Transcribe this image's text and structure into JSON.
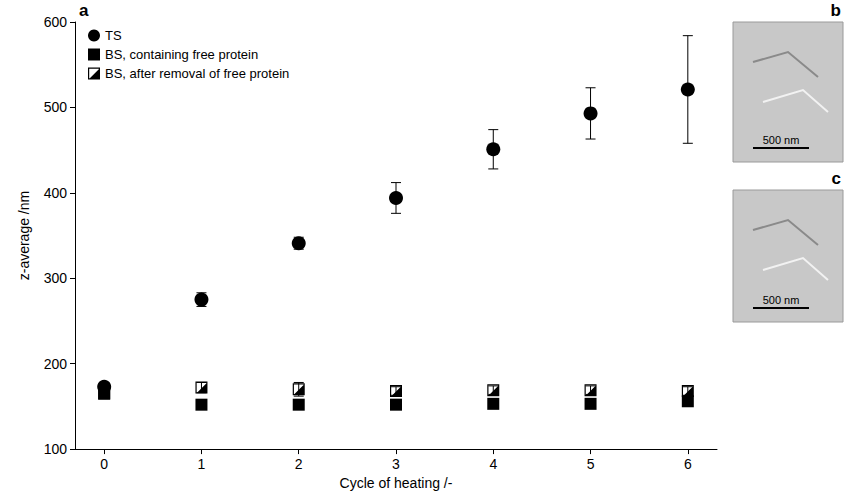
{
  "chart_data": {
    "type": "scatter",
    "panel_label": "a",
    "x_label": "Cycle of heating /-",
    "y_label": "z-average /nm",
    "xlim": [
      -0.3,
      6.3
    ],
    "xticks": [
      0,
      1,
      2,
      3,
      4,
      5,
      6
    ],
    "ylim": [
      100,
      600
    ],
    "yticks": [
      100,
      200,
      300,
      400,
      500,
      600
    ],
    "grid": false,
    "legend": "upper left",
    "series": [
      {
        "name": "TS",
        "color": "#000000",
        "marker": "circle",
        "x": [
          0,
          1,
          2,
          3,
          4,
          5,
          6
        ],
        "values": [
          173,
          275,
          341,
          394,
          451,
          493,
          521
        ],
        "errors": [
          5,
          8,
          7,
          18,
          23,
          30,
          63
        ]
      },
      {
        "name": "BS, containing free protein",
        "color": "#000000",
        "marker": "square",
        "x": [
          0,
          1,
          2,
          3,
          4,
          5,
          6
        ],
        "values": [
          165,
          152,
          152,
          152,
          153,
          153,
          156
        ],
        "errors": [
          3,
          3,
          3,
          3,
          3,
          3,
          3
        ]
      },
      {
        "name": "BS, after removal of free protein",
        "color": "#000000",
        "marker": "half-filled square",
        "x": [
          0,
          1,
          2,
          3,
          4,
          5,
          6
        ],
        "values": [
          165,
          172,
          170,
          168,
          169,
          169,
          168
        ],
        "errors": [
          5,
          6,
          8,
          5,
          5,
          5,
          5
        ]
      }
    ]
  },
  "images": [
    {
      "label": "b",
      "scale_bar": "500 nm"
    },
    {
      "label": "c",
      "scale_bar": "500 nm"
    }
  ]
}
